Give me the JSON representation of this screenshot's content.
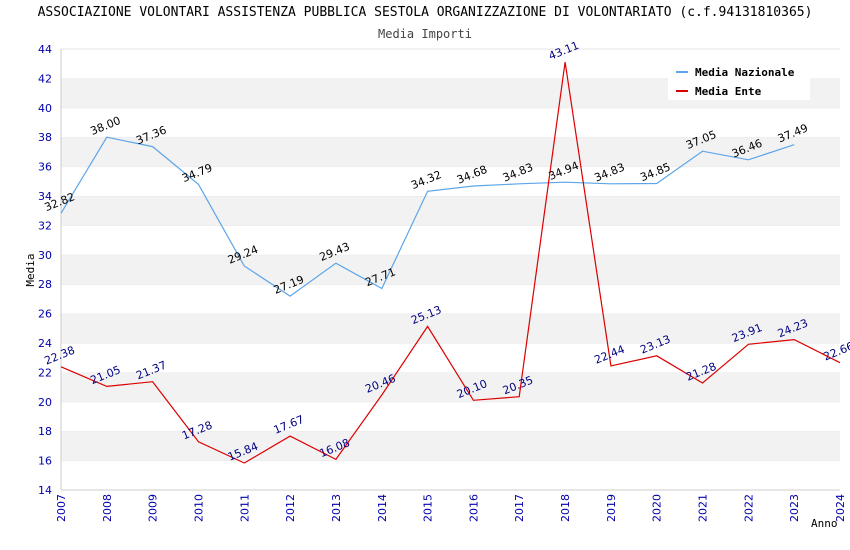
{
  "title": "ASSOCIAZIONE VOLONTARI ASSISTENZA PUBBLICA SESTOLA ORGANIZZAZIONE DI VOLONTARIATO (c.f.94131810365)",
  "subtitle": "Media Importi",
  "chart_data": {
    "type": "line",
    "title": "ASSOCIAZIONE VOLONTARI ASSISTENZA PUBBLICA SESTOLA ORGANIZZAZIONE DI VOLONTARIATO (c.f.94131810365)",
    "subtitle": "Media Importi",
    "xlabel": "Anno",
    "ylabel": "Media",
    "ylim": [
      14,
      44
    ],
    "yticks": [
      14,
      16,
      18,
      20,
      22,
      24,
      26,
      28,
      30,
      32,
      34,
      36,
      38,
      40,
      42,
      44
    ],
    "x": [
      "2007",
      "2008",
      "2009",
      "2010",
      "2011",
      "2012",
      "2013",
      "2014",
      "2015",
      "2016",
      "2017",
      "2018",
      "2019",
      "2020",
      "2021",
      "2022",
      "2023",
      "2024"
    ],
    "grid": "horizontal bands",
    "legend_position": "top-right",
    "series": [
      {
        "name": "Media Nazionale",
        "color": "#5da5e8",
        "values": [
          32.82,
          38.0,
          37.36,
          34.79,
          29.24,
          27.19,
          29.43,
          27.71,
          34.32,
          34.68,
          34.83,
          34.94,
          34.83,
          34.85,
          37.05,
          36.46,
          37.49,
          null
        ],
        "labels": [
          "32.82",
          "38.00",
          "37.36",
          "34.79",
          "29.24",
          "27.19",
          "29.43",
          "27.71",
          "34.32",
          "34.68",
          "34.83",
          "34.94",
          "34.83",
          "34.85",
          "37.05",
          "36.46",
          "37.49",
          null
        ]
      },
      {
        "name": "Media Ente",
        "color": "#dd0000",
        "values": [
          22.38,
          21.05,
          21.37,
          17.28,
          15.84,
          17.67,
          16.08,
          20.46,
          25.13,
          20.1,
          20.35,
          43.11,
          22.44,
          23.13,
          21.28,
          23.91,
          24.23,
          22.66
        ],
        "labels": [
          "22.38",
          "21.05",
          "21.37",
          "17.28",
          "15.84",
          "17.67",
          "16.08",
          "20.46",
          "25.13",
          "20.10",
          "20.35",
          "43.11",
          "22.44",
          "23.13",
          "21.28",
          "23.91",
          "24.23",
          "22.66"
        ]
      }
    ]
  }
}
